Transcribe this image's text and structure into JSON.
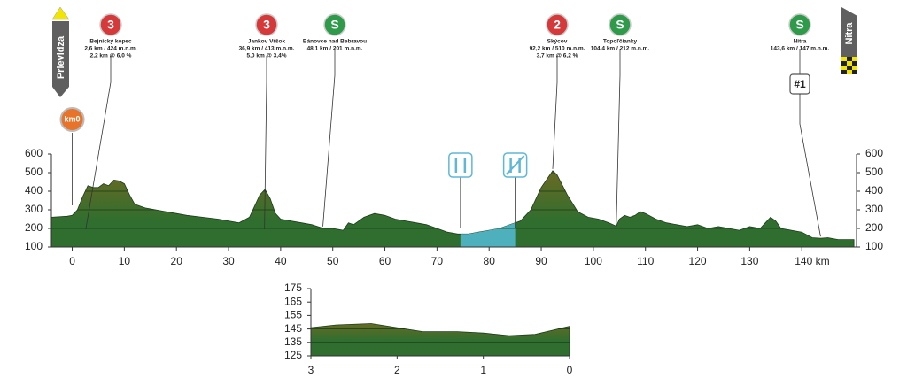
{
  "chart_data": [
    {
      "type": "area",
      "x": [
        -4,
        -1,
        0,
        1,
        2,
        3,
        4,
        5,
        6,
        7,
        8,
        9,
        10,
        11,
        12,
        14,
        16,
        18,
        20,
        22,
        25,
        28,
        30,
        32,
        34,
        35,
        36,
        37,
        38,
        39,
        40,
        42,
        44,
        46,
        48.1,
        50,
        52,
        53,
        54,
        56,
        58,
        60,
        62,
        64,
        66,
        68,
        70,
        72,
        74,
        76,
        78,
        80,
        82,
        84,
        86,
        88,
        90,
        92.2,
        93,
        95,
        97,
        99,
        101,
        103,
        104.4,
        105,
        106,
        107,
        108,
        109,
        110,
        112,
        114,
        116,
        118,
        120,
        122,
        124,
        126,
        128,
        130,
        132,
        134,
        135,
        136,
        138,
        140,
        142,
        143.6,
        145,
        147,
        150
      ],
      "values": [
        260,
        265,
        270,
        300,
        370,
        430,
        420,
        420,
        440,
        430,
        460,
        455,
        440,
        380,
        330,
        310,
        300,
        290,
        280,
        270,
        260,
        250,
        240,
        230,
        260,
        320,
        380,
        410,
        360,
        280,
        250,
        240,
        230,
        220,
        201,
        200,
        190,
        230,
        220,
        260,
        280,
        270,
        250,
        240,
        230,
        220,
        200,
        180,
        170,
        170,
        180,
        190,
        200,
        220,
        240,
        300,
        420,
        510,
        490,
        380,
        290,
        260,
        250,
        230,
        212,
        250,
        270,
        260,
        270,
        290,
        280,
        250,
        230,
        220,
        210,
        220,
        200,
        210,
        200,
        190,
        210,
        200,
        260,
        240,
        200,
        190,
        180,
        150,
        147,
        150,
        140,
        140
      ],
      "color": "#2f6e2f",
      "xlim": [
        -4,
        150.5
      ],
      "xticks": [
        0,
        10,
        20,
        30,
        40,
        50,
        60,
        70,
        80,
        90,
        100,
        110,
        120,
        130,
        {
          "value": 140,
          "label": "140 km"
        }
      ],
      "ylim": [
        100,
        600
      ],
      "yticks": [
        100,
        200,
        300,
        400,
        500,
        600
      ],
      "feed_zone": [
        74.5,
        85
      ],
      "start": "Prievidza",
      "finish": "Nitra",
      "start_marker": "km0",
      "pois": [
        {
          "category": "3",
          "name": "Bejnický kopec",
          "lines": [
            "2,6 km / 424 m.n.m.",
            "2,2 km @ 6,0 %"
          ],
          "km": 2.6
        },
        {
          "category": "3",
          "name": "Jankov Vŕšok",
          "lines": [
            "36,9 km / 413 m.n.m.",
            "5,0 km @ 3,4%"
          ],
          "km": 36.9
        },
        {
          "category": "S",
          "name": "Bánovce nad Bebravou",
          "lines": [
            "48,1 km / 201 m.n.m."
          ],
          "km": 48.1
        },
        {
          "category": "2",
          "name": "Skýcov",
          "lines": [
            "92,2 km / 510 m.n.m.",
            "3,7 km @ 6,2 %"
          ],
          "km": 92.2
        },
        {
          "category": "S",
          "name": "Topoľčianky",
          "lines": [
            "104,4 km / 212 m.n.m."
          ],
          "km": 104.4
        },
        {
          "category": "S",
          "name": "Nitra",
          "lines": [
            "143,6 km / 147 m.n.m."
          ],
          "km": 143.6,
          "marker": "#1"
        }
      ]
    },
    {
      "type": "area",
      "x": [
        3,
        2.7,
        2.3,
        2,
        1.7,
        1.3,
        1,
        0.7,
        0.4,
        0.2,
        0
      ],
      "values": [
        146,
        148,
        149,
        146,
        143,
        143,
        142,
        140,
        141,
        144,
        147
      ],
      "color": "#2f6e2f",
      "xlim": [
        3,
        0
      ],
      "xticks": [
        3,
        2,
        1,
        0
      ],
      "ylim": [
        125,
        175
      ],
      "yticks": [
        125,
        135,
        145,
        155,
        165,
        175
      ]
    }
  ]
}
